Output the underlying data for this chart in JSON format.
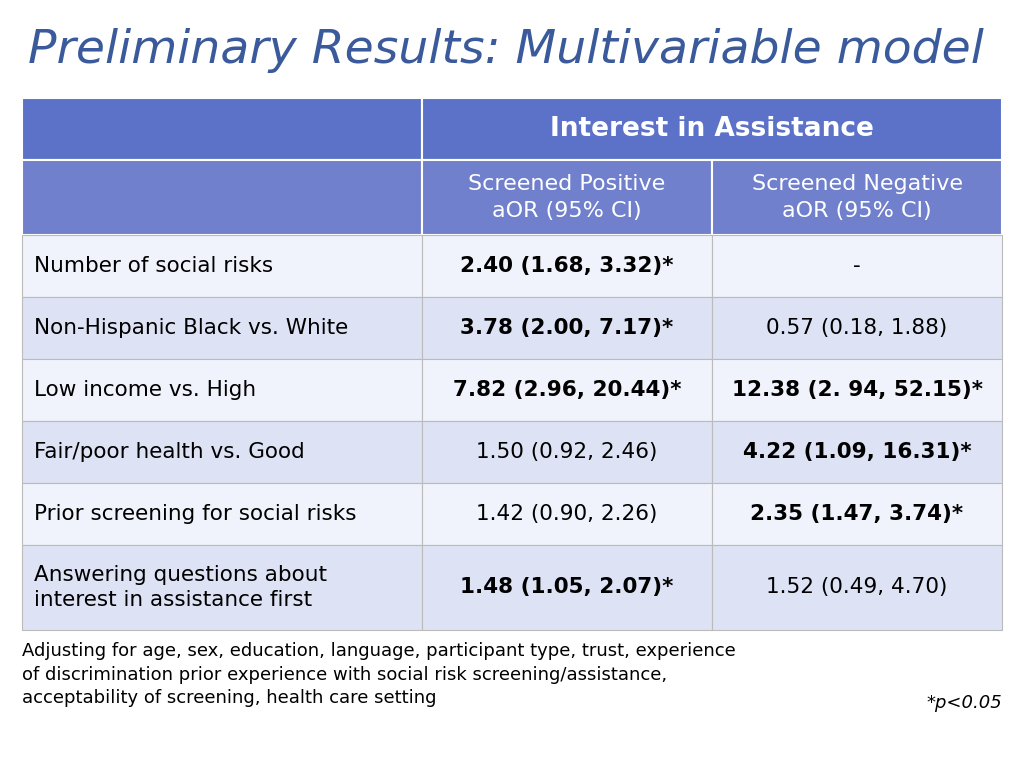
{
  "title": "Preliminary Results: Multivariable model",
  "title_color": "#3a5a9b",
  "background_color": "#ffffff",
  "header_bg_dark": "#5b72c8",
  "header_bg_medium": "#7080cc",
  "row_bg_light": "#dde3f4",
  "row_bg_white": "#f0f3fb",
  "col_header_top": "Interest in Assistance",
  "col_header_left": "Screened Positive\naOR (95% CI)",
  "col_header_right": "Screened Negative\naOR (95% CI)",
  "rows": [
    {
      "label": "Number of social risks",
      "label_multiline": false,
      "col1": "2.40 (1.68, 3.32)*",
      "col1_bold": true,
      "col2": "-",
      "col2_bold": false
    },
    {
      "label": "Non-Hispanic Black vs. White",
      "label_multiline": false,
      "col1": "3.78 (2.00, 7.17)*",
      "col1_bold": true,
      "col2": "0.57 (0.18, 1.88)",
      "col2_bold": false
    },
    {
      "label": "Low income vs. High",
      "label_multiline": false,
      "col1": "7.82 (2.96, 20.44)*",
      "col1_bold": true,
      "col2": "12.38 (2. 94, 52.15)*",
      "col2_bold": true
    },
    {
      "label": "Fair/poor health vs. Good",
      "label_multiline": false,
      "col1": "1.50 (0.92, 2.46)",
      "col1_bold": false,
      "col2": "4.22 (1.09, 16.31)*",
      "col2_bold": true
    },
    {
      "label": "Prior screening for social risks",
      "label_multiline": false,
      "col1": "1.42 (0.90, 2.26)",
      "col1_bold": false,
      "col2": "2.35 (1.47, 3.74)*",
      "col2_bold": true
    },
    {
      "label": "Answering questions about\ninterest in assistance first",
      "label_multiline": true,
      "col1": "1.48 (1.05, 2.07)*",
      "col1_bold": true,
      "col2": "1.52 (0.49, 4.70)",
      "col2_bold": false
    }
  ],
  "footnote": "Adjusting for age, sex, education, language, participant type, trust, experience\nof discrimination prior experience with social risk screening/assistance,\nacceptability of screening, health care setting",
  "footnote_sig": "*p<0.05",
  "figwidth": 10.24,
  "figheight": 7.68,
  "dpi": 100
}
